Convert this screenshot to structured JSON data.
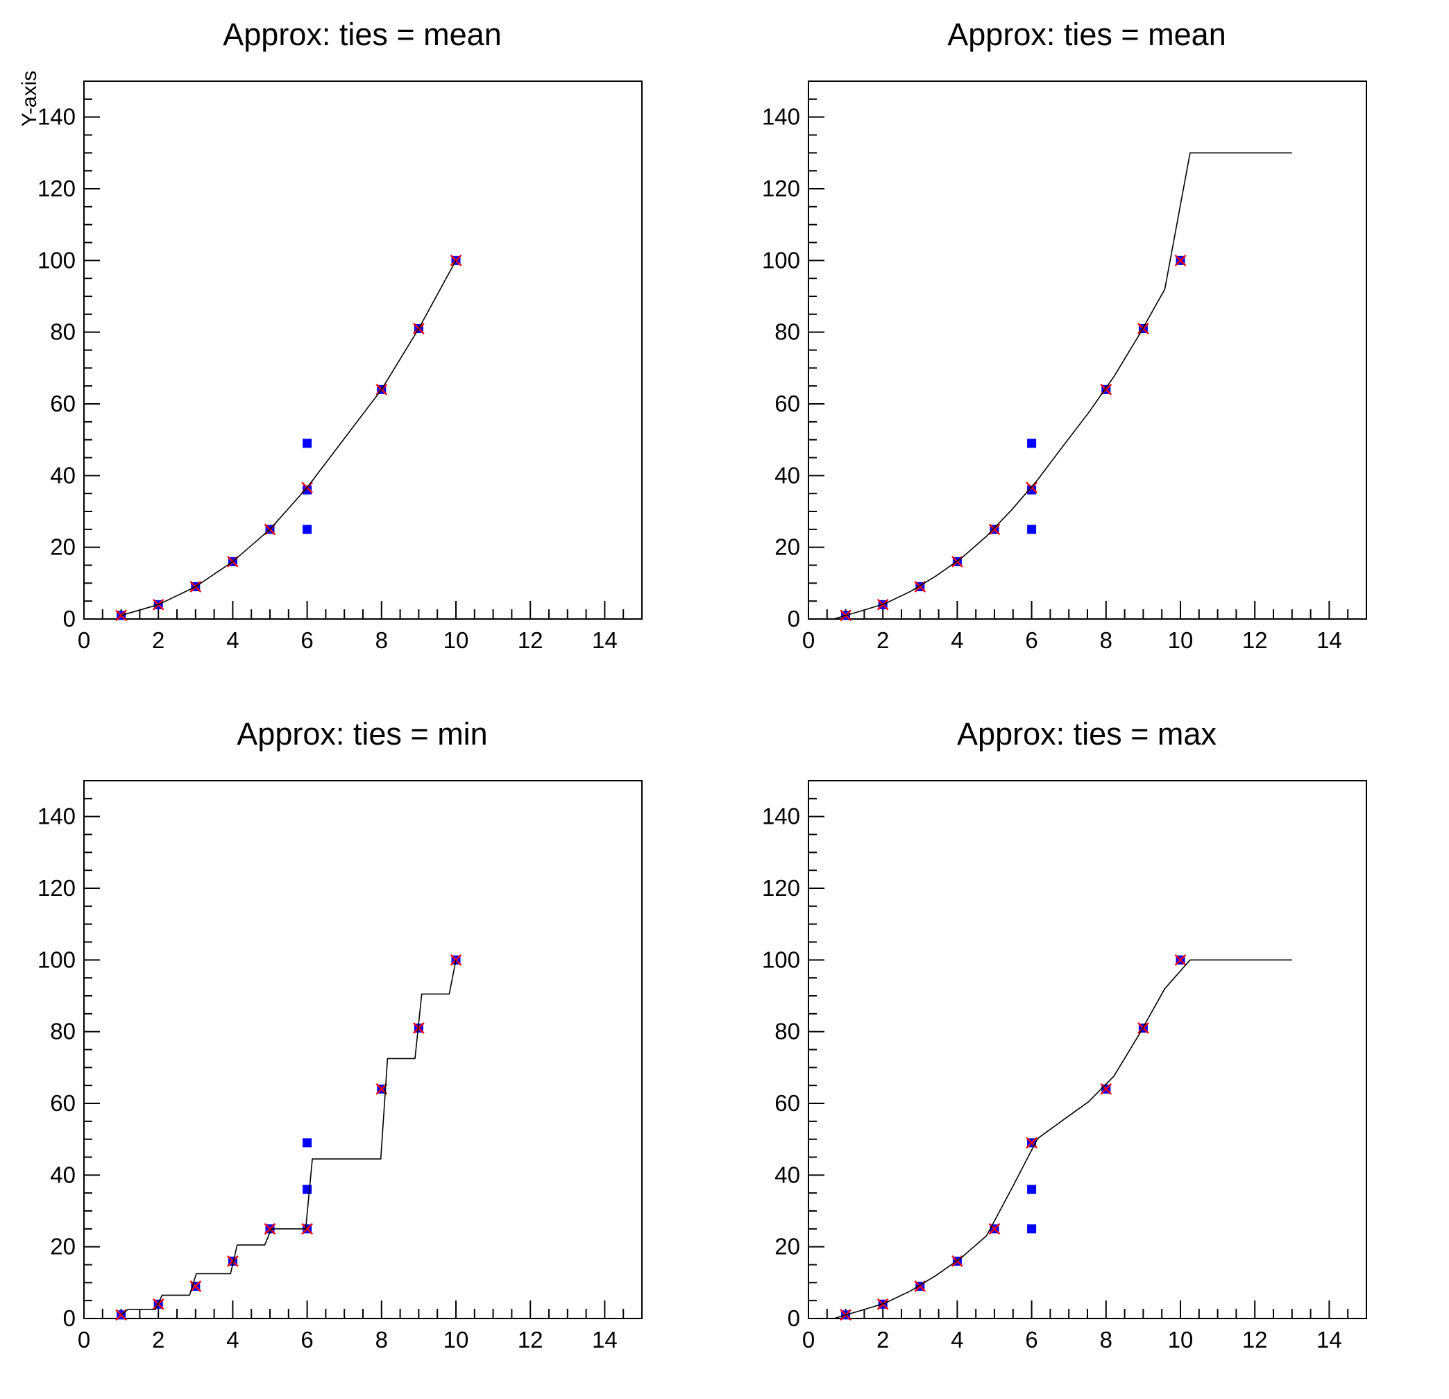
{
  "canvas": {
    "background": "#ffffff",
    "line_color": "#000000"
  },
  "marker_colors": {
    "data_points": "#0000ff",
    "input_knots": "#ff0000"
  },
  "chart_data": [
    {
      "type": "line",
      "title": "Approx: ties = mean",
      "y_axis_title": "Y-axis",
      "x_axis_title": "",
      "ties": "mean",
      "xlim": [
        0,
        15
      ],
      "ylim": [
        0,
        150
      ],
      "x_major_ticks": [
        0,
        2,
        4,
        6,
        8,
        10,
        12,
        14
      ],
      "x_tick_labels": [
        "0",
        "2",
        "4",
        "6",
        "8",
        "10",
        "12",
        "14"
      ],
      "x_minor_step": 0.5,
      "y_major_ticks": [
        0,
        20,
        40,
        60,
        80,
        100,
        120,
        140
      ],
      "y_tick_labels": [
        "0",
        "20",
        "40",
        "60",
        "80",
        "100",
        "120",
        "140"
      ],
      "y_minor_step": 5,
      "grid": false,
      "legend": "none",
      "series": [
        {
          "name": "data-points",
          "type": "scatter",
          "marker": "filled-square",
          "color": "#0000ff",
          "x": [
            1,
            2,
            3,
            4,
            5,
            6,
            6,
            6,
            8,
            9,
            10
          ],
          "y": [
            1,
            4,
            9,
            16,
            25,
            36,
            49,
            25,
            64,
            81,
            100
          ]
        },
        {
          "name": "input-knots",
          "type": "scatter",
          "marker": "x-cross",
          "color": "#ff0000",
          "x": [
            1,
            2,
            3,
            4,
            5,
            6,
            8,
            9,
            10
          ],
          "y": [
            1,
            4,
            9,
            16,
            25,
            36.67,
            64,
            81,
            100
          ]
        },
        {
          "name": "approx-curve",
          "type": "line",
          "color": "#000000",
          "x": [
            1,
            2,
            3,
            4,
            5,
            6,
            8,
            9,
            10
          ],
          "y": [
            1,
            4,
            9,
            16,
            25,
            36.67,
            64,
            81,
            100
          ]
        }
      ]
    },
    {
      "type": "line",
      "title": "Approx: ties = mean",
      "y_axis_title": "",
      "x_axis_title": "",
      "ties": "mean",
      "xlim": [
        0,
        15
      ],
      "ylim": [
        0,
        150
      ],
      "x_major_ticks": [
        0,
        2,
        4,
        6,
        8,
        10,
        12,
        14
      ],
      "x_tick_labels": [
        "0",
        "2",
        "4",
        "6",
        "8",
        "10",
        "12",
        "14"
      ],
      "x_minor_step": 0.5,
      "y_major_ticks": [
        0,
        20,
        40,
        60,
        80,
        100,
        120,
        140
      ],
      "y_tick_labels": [
        "0",
        "20",
        "40",
        "60",
        "80",
        "100",
        "120",
        "140"
      ],
      "y_minor_step": 5,
      "grid": false,
      "legend": "none",
      "series": [
        {
          "name": "data-points",
          "type": "scatter",
          "marker": "filled-square",
          "color": "#0000ff",
          "x": [
            1,
            2,
            3,
            4,
            5,
            6,
            6,
            6,
            8,
            9,
            10
          ],
          "y": [
            1,
            4,
            9,
            16,
            25,
            36,
            49,
            25,
            64,
            81,
            100
          ]
        },
        {
          "name": "input-knots",
          "type": "scatter",
          "marker": "x-cross",
          "color": "#ff0000",
          "x": [
            1,
            2,
            3,
            4,
            5,
            6,
            8,
            9,
            10
          ],
          "y": [
            1,
            4,
            9,
            16,
            25,
            36.67,
            64,
            81,
            100
          ]
        },
        {
          "name": "approx-curve",
          "type": "line",
          "color": "#000000",
          "x": [
            0,
            0.68,
            1.37,
            2.05,
            2.74,
            3.42,
            4.11,
            4.79,
            5.47,
            6.16,
            6.84,
            7.53,
            8.21,
            8.89,
            9.58,
            10.26,
            11,
            12,
            13
          ],
          "y": [
            0,
            0,
            2.11,
            4.26,
            7.68,
            11.95,
            16.95,
            23.11,
            30.53,
            38.83,
            48.18,
            57.52,
            67.58,
            79.21,
            92,
            130,
            130,
            130,
            130
          ]
        }
      ]
    },
    {
      "type": "line",
      "title": "Approx: ties = min",
      "y_axis_title": "",
      "x_axis_title": "",
      "ties": "min",
      "xlim": [
        0,
        15
      ],
      "ylim": [
        0,
        150
      ],
      "x_major_ticks": [
        0,
        2,
        4,
        6,
        8,
        10,
        12,
        14
      ],
      "x_tick_labels": [
        "0",
        "2",
        "4",
        "6",
        "8",
        "10",
        "12",
        "14"
      ],
      "x_minor_step": 0.5,
      "y_major_ticks": [
        0,
        20,
        40,
        60,
        80,
        100,
        120,
        140
      ],
      "y_tick_labels": [
        "0",
        "20",
        "40",
        "60",
        "80",
        "100",
        "120",
        "140"
      ],
      "y_minor_step": 5,
      "grid": false,
      "legend": "none",
      "series": [
        {
          "name": "data-points",
          "type": "scatter",
          "marker": "filled-square",
          "color": "#0000ff",
          "x": [
            1,
            2,
            3,
            4,
            5,
            6,
            6,
            6,
            8,
            9,
            10
          ],
          "y": [
            1,
            4,
            9,
            16,
            25,
            36,
            49,
            25,
            64,
            81,
            100
          ]
        },
        {
          "name": "input-knots",
          "type": "scatter",
          "marker": "x-cross",
          "color": "#ff0000",
          "x": [
            1,
            2,
            3,
            4,
            5,
            6,
            8,
            9,
            10
          ],
          "y": [
            1,
            4,
            9,
            16,
            25,
            25,
            64,
            81,
            100
          ]
        },
        {
          "name": "approx-curve",
          "type": "line",
          "color": "#000000",
          "x": [
            1,
            1.18,
            1.92,
            2.1,
            2.84,
            3.02,
            3.94,
            4.12,
            4.86,
            5.04,
            5.96,
            6.14,
            7.98,
            8.16,
            8.9,
            9.08,
            9.82,
            10
          ],
          "y": [
            1,
            2.5,
            2.5,
            6.5,
            6.5,
            12.5,
            12.5,
            20.5,
            20.5,
            25,
            25,
            44.5,
            44.5,
            72.5,
            72.5,
            90.5,
            90.5,
            100
          ]
        }
      ]
    },
    {
      "type": "line",
      "title": "Approx: ties = max",
      "y_axis_title": "",
      "x_axis_title": "",
      "ties": "max",
      "xlim": [
        0,
        15
      ],
      "ylim": [
        0,
        150
      ],
      "x_major_ticks": [
        0,
        2,
        4,
        6,
        8,
        10,
        12,
        14
      ],
      "x_tick_labels": [
        "0",
        "2",
        "4",
        "6",
        "8",
        "10",
        "12",
        "14"
      ],
      "x_minor_step": 0.5,
      "y_major_ticks": [
        0,
        20,
        40,
        60,
        80,
        100,
        120,
        140
      ],
      "y_tick_labels": [
        "0",
        "20",
        "40",
        "60",
        "80",
        "100",
        "120",
        "140"
      ],
      "y_minor_step": 5,
      "grid": false,
      "legend": "none",
      "series": [
        {
          "name": "data-points",
          "type": "scatter",
          "marker": "filled-square",
          "color": "#0000ff",
          "x": [
            1,
            2,
            3,
            4,
            5,
            6,
            6,
            6,
            8,
            9,
            10
          ],
          "y": [
            1,
            4,
            9,
            16,
            25,
            36,
            49,
            25,
            64,
            81,
            100
          ]
        },
        {
          "name": "input-knots",
          "type": "scatter",
          "marker": "x-cross",
          "color": "#ff0000",
          "x": [
            1,
            2,
            3,
            4,
            5,
            6,
            8,
            9,
            10
          ],
          "y": [
            1,
            4,
            9,
            16,
            25,
            49,
            64,
            81,
            100
          ]
        },
        {
          "name": "approx-curve",
          "type": "line",
          "color": "#000000",
          "x": [
            0,
            0.68,
            1.37,
            2.05,
            2.74,
            3.42,
            4.11,
            4.79,
            5.47,
            6.16,
            6.84,
            7.53,
            8.21,
            8.89,
            9.58,
            10.26,
            11,
            12,
            13
          ],
          "y": [
            0,
            0,
            2.11,
            4.26,
            7.68,
            11.95,
            16.95,
            23.11,
            36.37,
            50.18,
            55.32,
            60.45,
            67.58,
            79.21,
            92,
            100,
            100,
            100,
            100
          ]
        }
      ]
    }
  ]
}
